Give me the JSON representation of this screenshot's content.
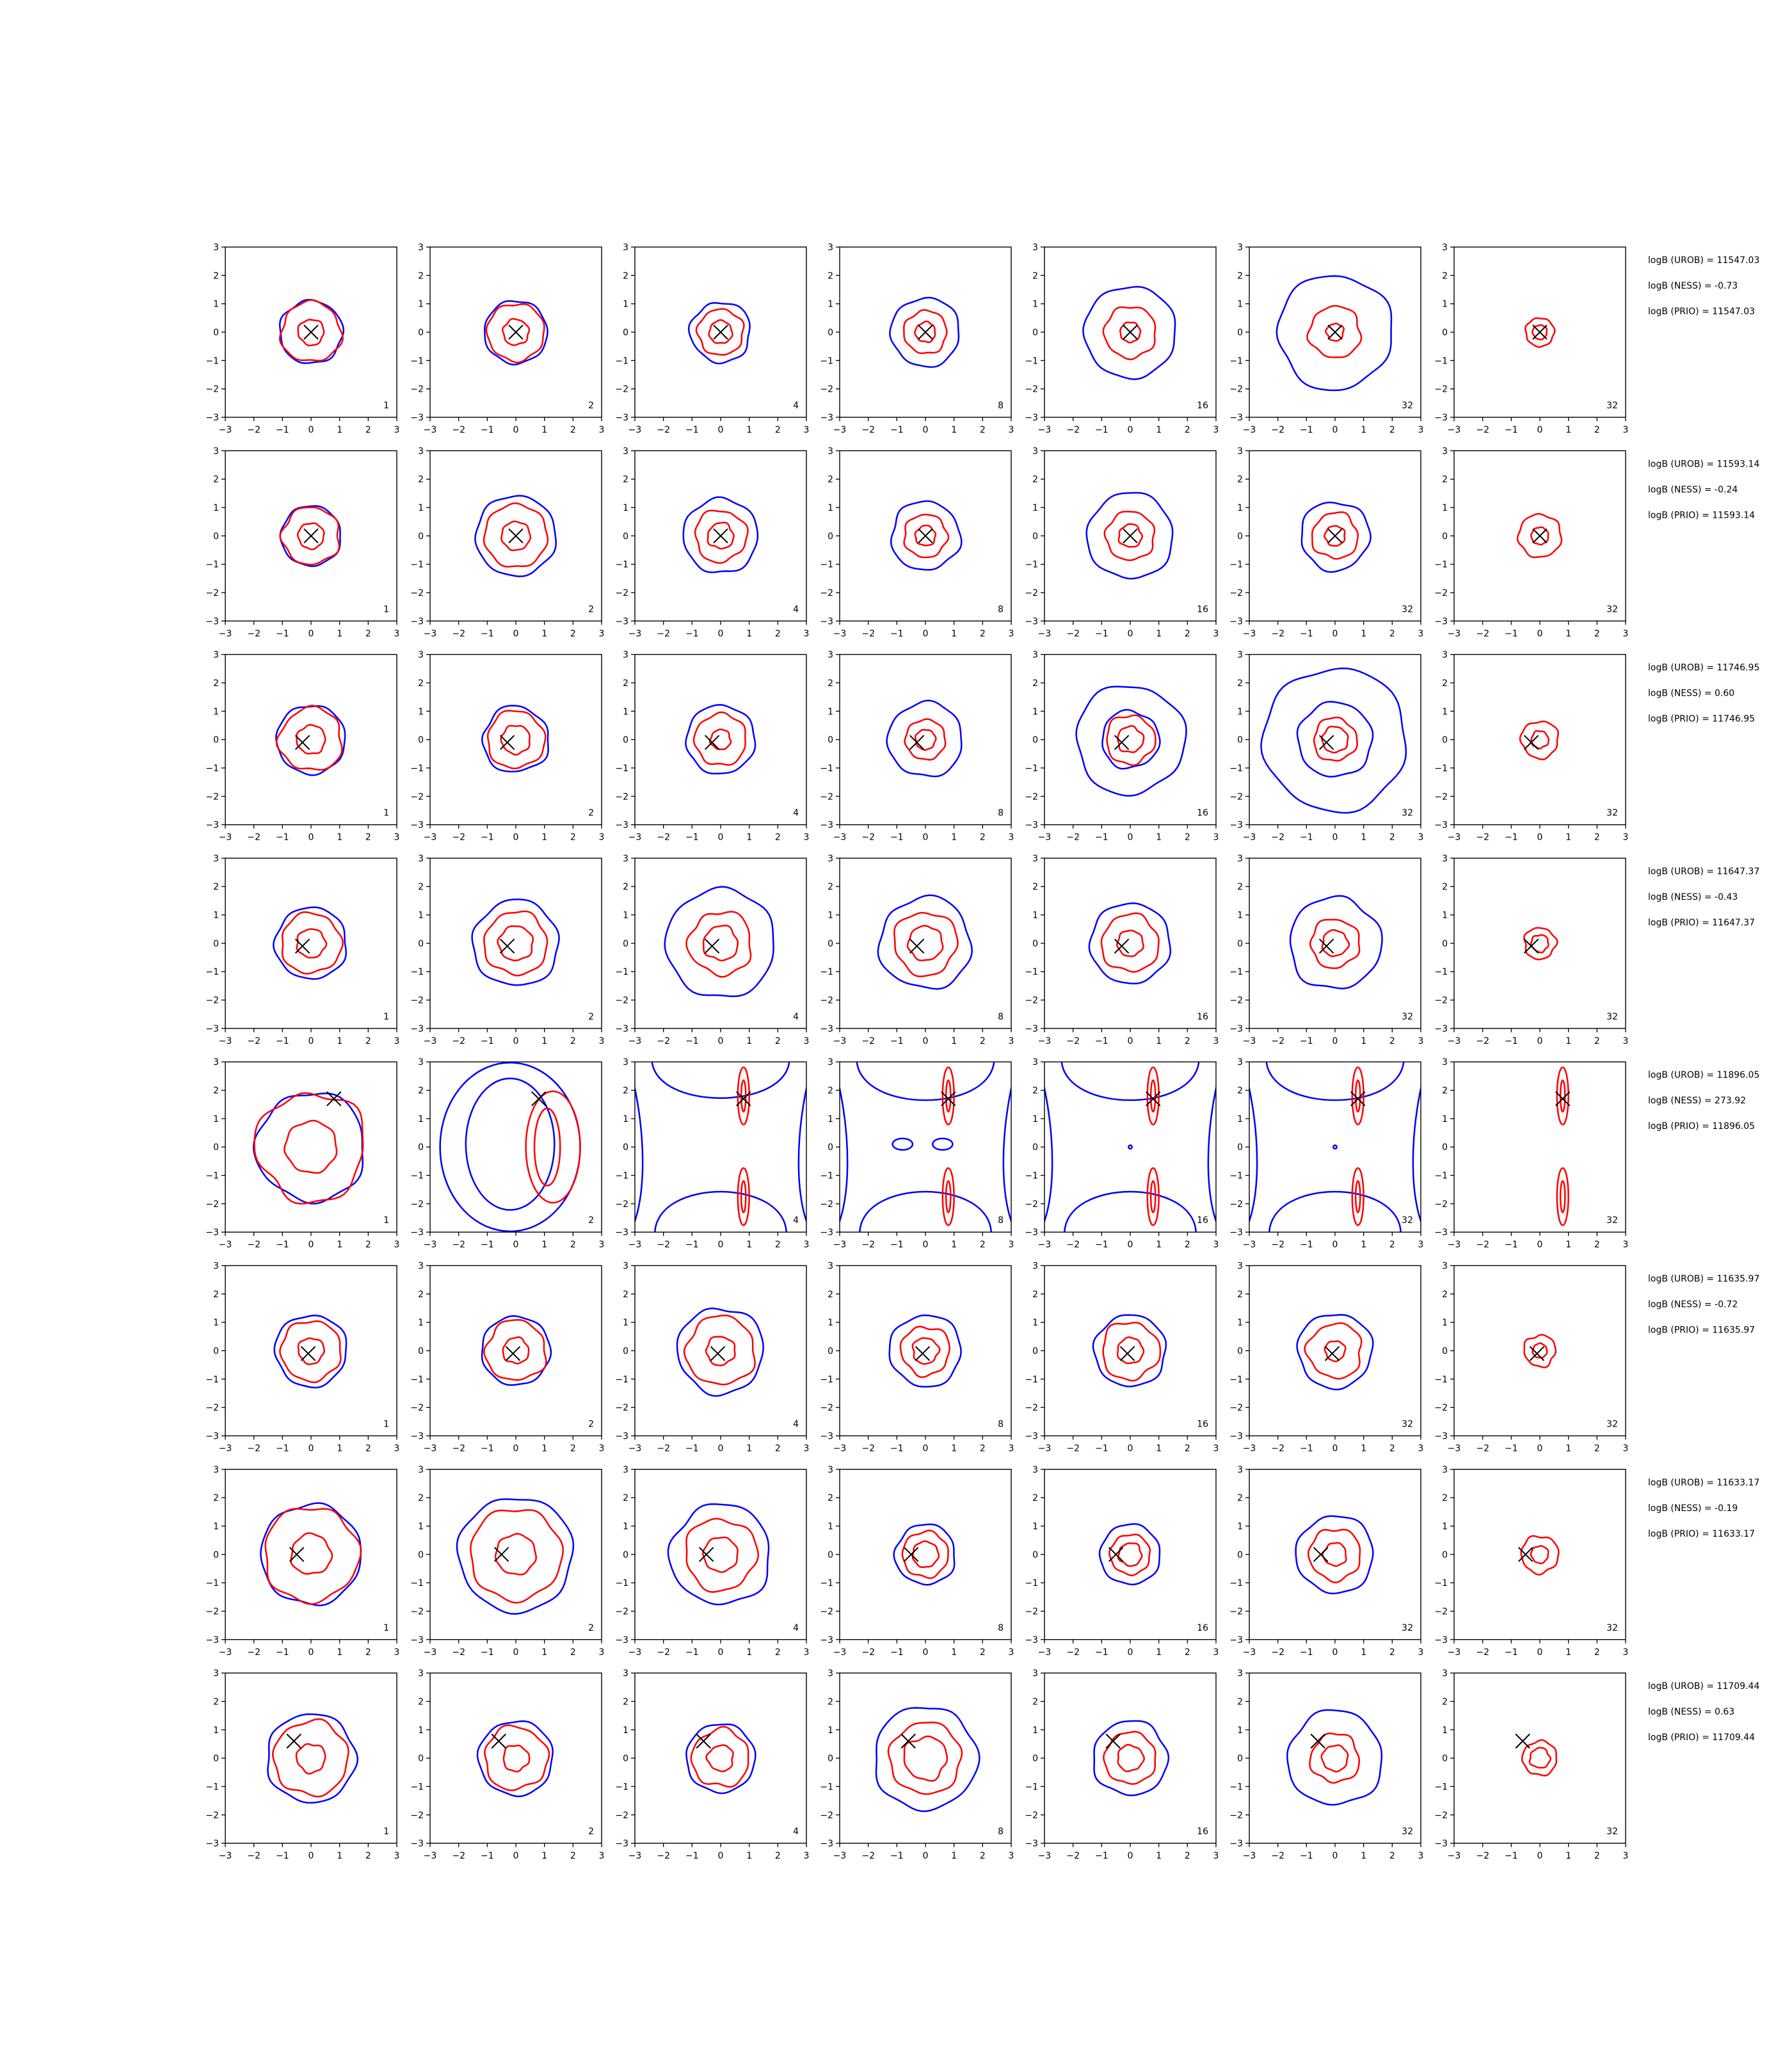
{
  "chart_data": {
    "type": "contour",
    "grid": {
      "rows": 8,
      "cols": 7
    },
    "axes": {
      "xlim": [
        -3,
        3
      ],
      "ylim": [
        -3,
        3
      ],
      "ticks": [
        "−3",
        "−2",
        "−1",
        "0",
        "1",
        "2",
        "3"
      ]
    },
    "colors": {
      "outer": "#0000ff",
      "inner": "#ff0000",
      "marker": "#000000"
    },
    "col_labels": [
      "1",
      "2",
      "4",
      "8",
      "16",
      "32",
      "32"
    ],
    "rows": [
      {
        "marker": [
          0,
          0
        ],
        "annotations": [
          "logB (UROB) = 11547.03",
          "logB (NESS) = -0.73",
          "logB (PRIO) = 11547.03"
        ],
        "panels": [
          {
            "b": [
              1.1
            ],
            "r": [
              0.45,
              1.05
            ]
          },
          {
            "b": [
              1.1
            ],
            "r": [
              0.45,
              1.0
            ]
          },
          {
            "b": [
              1.05
            ],
            "r": [
              0.4,
              0.8
            ]
          },
          {
            "b": [
              1.2
            ],
            "r": [
              0.35,
              0.75
            ]
          },
          {
            "b": [
              1.6
            ],
            "r": [
              0.35,
              0.9
            ]
          },
          {
            "b": [
              2.0
            ],
            "r": [
              0.3,
              0.9
            ]
          },
          {
            "b": [],
            "r": [
              0.25,
              0.5
            ]
          }
        ]
      },
      {
        "marker": [
          0,
          0
        ],
        "annotations": [
          "logB (UROB) = 11593.14",
          "logB (NESS) = -0.24",
          "logB (PRIO) = 11593.14"
        ],
        "panels": [
          {
            "b": [
              1.05
            ],
            "r": [
              0.45,
              1.0
            ]
          },
          {
            "b": [
              1.4
            ],
            "r": [
              0.5,
              1.1
            ]
          },
          {
            "b": [
              1.3
            ],
            "r": [
              0.45,
              0.9
            ]
          },
          {
            "b": [
              1.2
            ],
            "r": [
              0.35,
              0.75
            ]
          },
          {
            "b": [
              1.5
            ],
            "r": [
              0.4,
              0.85
            ]
          },
          {
            "b": [
              1.2
            ],
            "r": [
              0.35,
              0.8
            ]
          },
          {
            "b": [],
            "r": [
              0.3,
              0.75
            ]
          }
        ]
      },
      {
        "marker": [
          -0.3,
          -0.1
        ],
        "annotations": [
          "logB (UROB) = 11746.95",
          "logB (NESS) = 0.60",
          "logB (PRIO) = 11746.95"
        ],
        "panels": [
          {
            "b": [
              1.2
            ],
            "r": [
              0.5,
              1.1
            ]
          },
          {
            "b": [
              1.15
            ],
            "r": [
              0.5,
              1.0
            ]
          },
          {
            "b": [
              1.2
            ],
            "r": [
              0.35,
              0.9
            ]
          },
          {
            "b": [
              1.3
            ],
            "r": [
              0.35,
              0.7
            ]
          },
          {
            "b": [
              1.9,
              1.0
            ],
            "r": [
              0.45,
              0.85
            ]
          },
          {
            "b": [
              2.5,
              1.3
            ],
            "r": [
              0.45,
              0.75
            ]
          },
          {
            "b": [],
            "r": [
              0.3,
              0.65
            ]
          }
        ]
      },
      {
        "marker": [
          -0.3,
          -0.1
        ],
        "annotations": [
          "logB (UROB) = 11647.37",
          "logB (NESS) = -0.43",
          "logB (PRIO) = 11647.37"
        ],
        "panels": [
          {
            "b": [
              1.25
            ],
            "r": [
              0.5,
              1.05
            ]
          },
          {
            "b": [
              1.5
            ],
            "r": [
              0.6,
              1.1
            ]
          },
          {
            "b": [
              1.9
            ],
            "r": [
              0.6,
              1.1
            ]
          },
          {
            "b": [
              1.6
            ],
            "r": [
              0.6,
              1.1
            ]
          },
          {
            "b": [
              1.4
            ],
            "r": [
              0.45,
              1.0
            ]
          },
          {
            "b": [
              1.6
            ],
            "r": [
              0.45,
              0.85
            ]
          },
          {
            "b": [],
            "r": [
              0.3,
              0.55
            ]
          }
        ]
      },
      {
        "marker": [
          0.8,
          1.7
        ],
        "annotations": [
          "logB (UROB) = 11896.05",
          "logB (NESS) = 273.92",
          "logB (PRIO) = 11896.05"
        ],
        "panels": [
          {
            "b": [
              1.9
            ],
            "r": [
              0.9,
              1.9
            ]
          },
          {
            "b": [
              2.9
            ],
            "r": [
              0.9,
              1.3
            ]
          },
          {
            "b": [],
            "r": []
          },
          {
            "b": [],
            "r": []
          },
          {
            "b": [],
            "r": []
          },
          {
            "b": [],
            "r": []
          },
          {
            "b": [],
            "r": []
          }
        ]
      },
      {
        "marker": [
          -0.1,
          -0.1
        ],
        "annotations": [
          "logB (UROB) = 11635.97",
          "logB (NESS) = -0.72",
          "logB (PRIO) = 11635.97"
        ],
        "panels": [
          {
            "b": [
              1.25
            ],
            "r": [
              0.45,
              1.05
            ]
          },
          {
            "b": [
              1.2
            ],
            "r": [
              0.45,
              1.05
            ]
          },
          {
            "b": [
              1.5
            ],
            "r": [
              0.5,
              1.2
            ]
          },
          {
            "b": [
              1.25
            ],
            "r": [
              0.45,
              0.85
            ]
          },
          {
            "b": [
              1.25
            ],
            "r": [
              0.45,
              1.0
            ]
          },
          {
            "b": [
              1.3
            ],
            "r": [
              0.35,
              0.95
            ]
          },
          {
            "b": [],
            "r": [
              0.25,
              0.55
            ]
          }
        ]
      },
      {
        "marker": [
          -0.5,
          0
        ],
        "annotations": [
          "logB (UROB) = 11633.17",
          "logB (NESS) = -0.19",
          "logB (PRIO) = 11633.17"
        ],
        "panels": [
          {
            "b": [
              1.75
            ],
            "r": [
              0.7,
              1.65
            ]
          },
          {
            "b": [
              2.0
            ],
            "r": [
              0.7,
              1.6
            ]
          },
          {
            "b": [
              1.75
            ],
            "r": [
              0.6,
              1.25
            ]
          },
          {
            "b": [
              1.05
            ],
            "r": [
              0.45,
              0.8
            ]
          },
          {
            "b": [
              1.05
            ],
            "r": [
              0.4,
              0.7
            ]
          },
          {
            "b": [
              1.35
            ],
            "r": [
              0.4,
              0.9
            ]
          },
          {
            "b": [],
            "r": [
              0.3,
              0.65
            ]
          }
        ]
      },
      {
        "marker": [
          -0.6,
          0.6
        ],
        "annotations": [
          "logB (UROB) = 11709.44",
          "logB (NESS) = 0.63",
          "logB (PRIO) = 11709.44"
        ],
        "panels": [
          {
            "b": [
              1.55
            ],
            "r": [
              0.5,
              1.3
            ]
          },
          {
            "b": [
              1.3
            ],
            "r": [
              0.45,
              1.1
            ]
          },
          {
            "b": [
              1.2
            ],
            "r": [
              0.45,
              1.0
            ]
          },
          {
            "b": [
              1.8
            ],
            "r": [
              0.75,
              1.25
            ]
          },
          {
            "b": [
              1.3
            ],
            "r": [
              0.45,
              0.9
            ]
          },
          {
            "b": [
              1.65
            ],
            "r": [
              0.45,
              0.85
            ]
          },
          {
            "b": [],
            "r": [
              0.35,
              0.6
            ]
          }
        ]
      }
    ]
  }
}
